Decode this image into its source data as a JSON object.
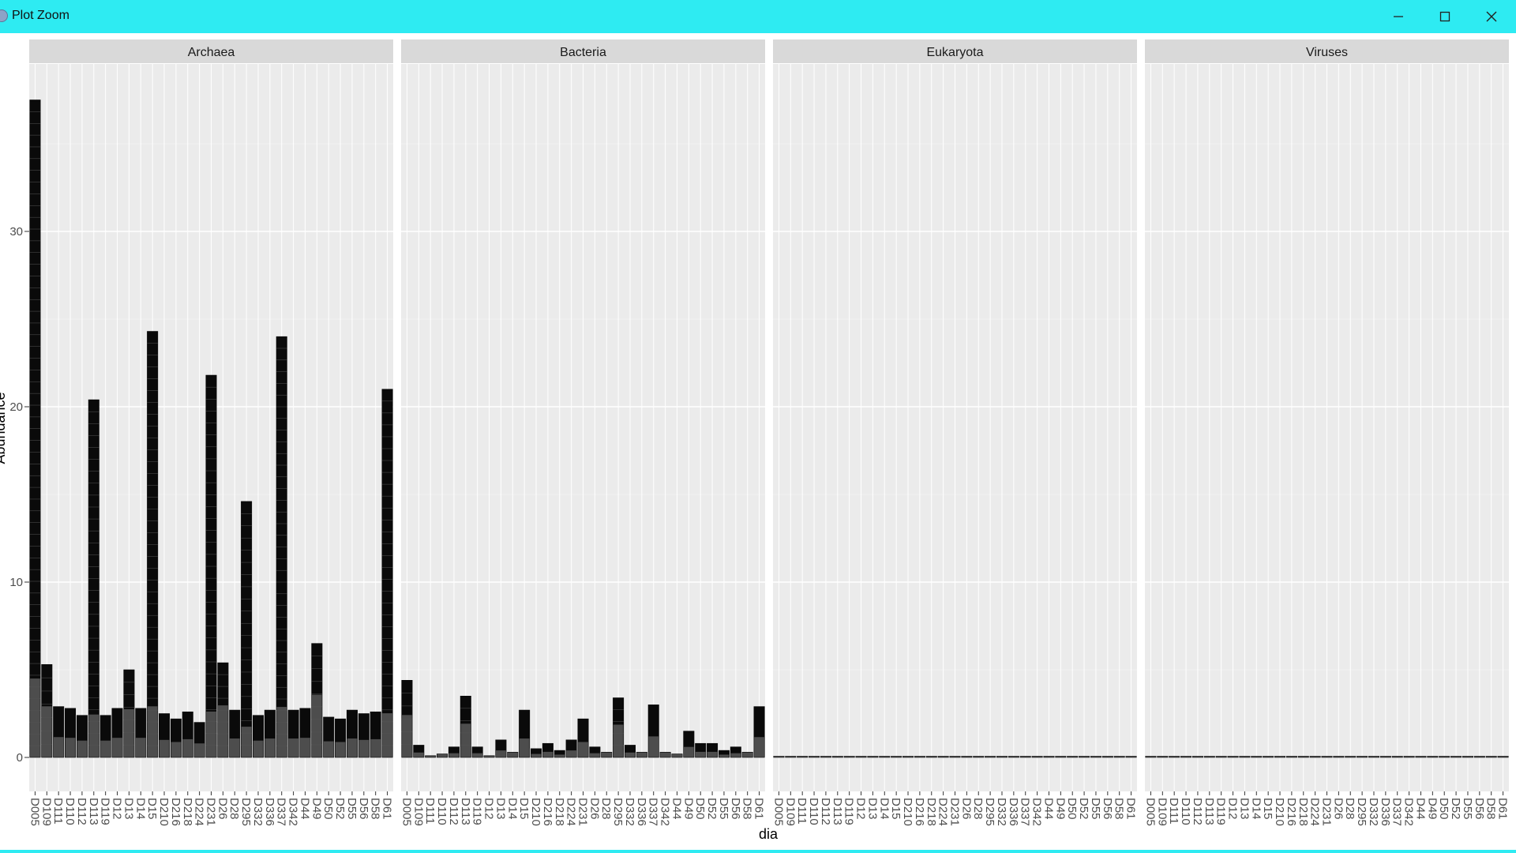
{
  "window": {
    "title": "Plot Zoom",
    "controls": {
      "minimize": "minimize-icon",
      "maximize": "maximize-icon",
      "close": "close-icon"
    },
    "titlebar_color": "#2eebf2"
  },
  "chart_data": {
    "type": "bar",
    "stacked": true,
    "facets": [
      "Archaea",
      "Bacteria",
      "Eukaryota",
      "Viruses"
    ],
    "xlabel": "dia",
    "ylabel": "Abundance",
    "ylim": [
      0,
      37.6
    ],
    "yticks": [
      0,
      10,
      20,
      30
    ],
    "grid": true,
    "legend": "none",
    "colors": {
      "panel_bg": "#ebebeb",
      "strip_bg": "#d9d9d9",
      "bar_fill": "#4d4d4d",
      "bar_outline": "#000000"
    },
    "categories": [
      "D005",
      "D109",
      "D111",
      "D110",
      "D112",
      "D113",
      "D119",
      "D12",
      "D13",
      "D14",
      "D15",
      "D210",
      "D216",
      "D218",
      "D224",
      "D231",
      "D26",
      "D28",
      "D295",
      "D332",
      "D336",
      "D337",
      "D342",
      "D44",
      "D49",
      "D50",
      "D52",
      "D55",
      "D56",
      "D58",
      "D61"
    ],
    "series": [
      {
        "facet": "Archaea",
        "values": [
          37.5,
          5.3,
          2.9,
          2.8,
          2.4,
          20.4,
          2.4,
          2.8,
          5.0,
          2.8,
          24.3,
          2.5,
          2.2,
          2.6,
          2.0,
          21.8,
          5.4,
          2.7,
          14.6,
          2.4,
          2.7,
          24.0,
          2.7,
          2.8,
          6.5,
          2.3,
          2.2,
          2.7,
          2.5,
          2.6,
          21.0
        ]
      },
      {
        "facet": "Bacteria",
        "values": [
          4.4,
          0.7,
          0.1,
          0.2,
          0.6,
          3.5,
          0.6,
          0.1,
          1.0,
          0.3,
          2.7,
          0.5,
          0.8,
          0.4,
          1.0,
          2.2,
          0.6,
          0.3,
          3.4,
          0.7,
          0.3,
          3.0,
          0.3,
          0.2,
          1.5,
          0.8,
          0.8,
          0.4,
          0.6,
          0.3,
          2.9
        ]
      },
      {
        "facet": "Eukaryota",
        "values": [
          0.05,
          0.03,
          0.02,
          0.02,
          0.03,
          0.06,
          0.02,
          0.02,
          0.04,
          0.02,
          0.05,
          0.02,
          0.02,
          0.02,
          0.02,
          0.05,
          0.02,
          0.02,
          0.04,
          0.02,
          0.02,
          0.05,
          0.02,
          0.02,
          0.02,
          0.02,
          0.02,
          0.02,
          0.02,
          0.02,
          0.04
        ]
      },
      {
        "facet": "Viruses",
        "values": [
          0.05,
          0.03,
          0.02,
          0.02,
          0.03,
          0.05,
          0.02,
          0.02,
          0.03,
          0.02,
          0.05,
          0.02,
          0.02,
          0.02,
          0.02,
          0.04,
          0.02,
          0.02,
          0.04,
          0.02,
          0.02,
          0.04,
          0.02,
          0.02,
          0.02,
          0.02,
          0.02,
          0.02,
          0.02,
          0.02,
          0.04
        ]
      }
    ]
  }
}
